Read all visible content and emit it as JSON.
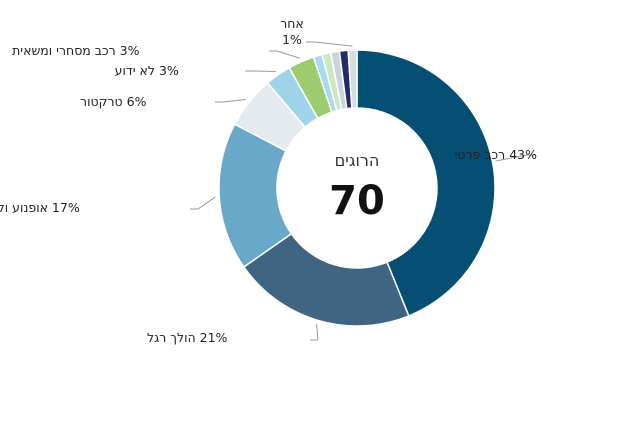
{
  "chart_data": {
    "type": "pie",
    "variant": "donut",
    "center_title": "הרוגים",
    "center_value": "70",
    "slices": [
      {
        "label": "רכב פרטי",
        "percent_text": "43%",
        "value": 43,
        "color": "#064f74"
      },
      {
        "label": "הולך רגל",
        "percent_text": "21%",
        "value": 21,
        "color": "#3f6583"
      },
      {
        "label": "אופנוע וקטנוע",
        "percent_text": "17%",
        "value": 17,
        "color": "#6aa8c9"
      },
      {
        "label": "טרקטור",
        "percent_text": "6%",
        "value": 6,
        "color": "#e3ebf0"
      },
      {
        "label": "לא ידוע",
        "percent_text": "3%",
        "value": 3,
        "color": "#9fd3ea"
      },
      {
        "label": "רכב מסחרי ומשאית",
        "percent_text": "3%",
        "value": 3,
        "color": "#9ccc6e"
      },
      {
        "label": "",
        "percent_text": "",
        "value": 1,
        "color": "#a9d9ee"
      },
      {
        "label": "",
        "percent_text": "",
        "value": 1,
        "color": "#cfe6c1"
      },
      {
        "label": "",
        "percent_text": "",
        "value": 1,
        "color": "#c9d3dc"
      },
      {
        "label": "",
        "percent_text": "",
        "value": 1,
        "color": "#1f2d6a"
      },
      {
        "label": "אחר",
        "percent_text": "1%",
        "value": 1,
        "color": "#d4dde5"
      }
    ]
  }
}
